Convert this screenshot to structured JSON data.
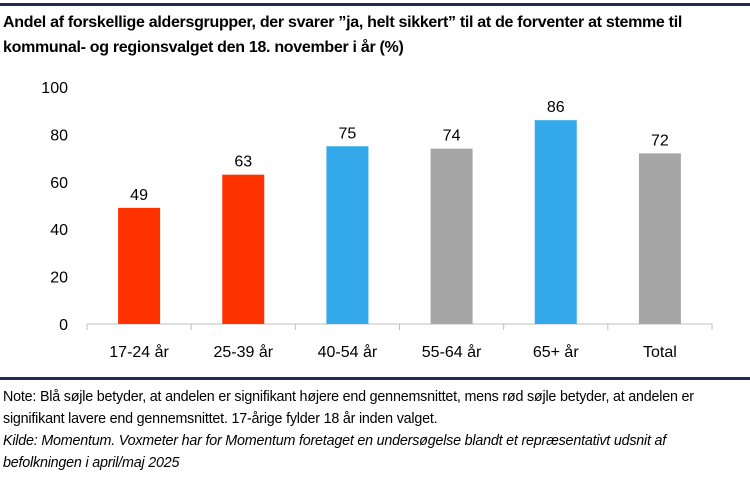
{
  "title": "Andel af forskellige aldersgrupper, der svarer ”ja, helt sikkert” til at de forventer at stemme til kommunal- og regionsvalget den 18. november i år (%)",
  "note": "Note: Blå søjle betyder, at andelen er signifikant højere end gennemsnittet, mens rød søjle betyder, at andelen er signifikant lavere end gennemsnittet. 17-årige fylder 18 år inden valget.",
  "source": "Kilde: Momentum. Voxmeter har for Momentum foretaget en undersøgelse blandt et repræsentativt udsnit af befolkningen i april/maj 2025",
  "colors": {
    "lower": "#FF3300",
    "higher": "#33A8EA",
    "neutral": "#A6A6A6",
    "rule": "#1f2a5a"
  },
  "chart_data": {
    "type": "bar",
    "title": "Andel af forskellige aldersgrupper, der svarer ”ja, helt sikkert” til at de forventer at stemme til kommunal- og regionsvalget den 18. november i år (%)",
    "categories": [
      "17-24 år",
      "25-39 år",
      "40-54 år",
      "55-64 år",
      "65+ år",
      "Total"
    ],
    "values": [
      49,
      63,
      75,
      74,
      86,
      72
    ],
    "significance": [
      "lower",
      "lower",
      "higher",
      "neutral",
      "higher",
      "neutral"
    ],
    "ylim": [
      0,
      100
    ],
    "yticks": [
      0,
      20,
      40,
      60,
      80,
      100
    ],
    "grid": false,
    "data_labels": true
  }
}
